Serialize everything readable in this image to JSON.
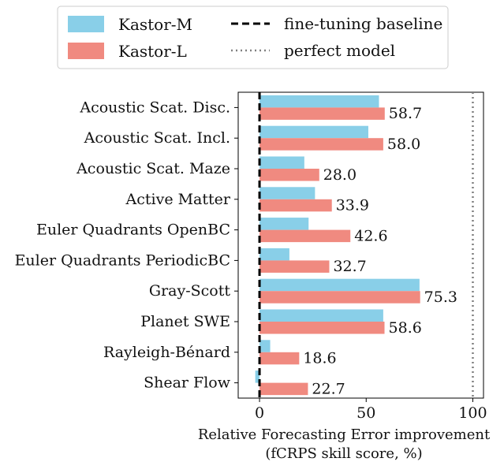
{
  "chart_data": {
    "type": "bar",
    "orientation": "horizontal",
    "xlabel": "Relative Forecasting Error improvement",
    "xlabel_line2": "(fCRPS skill score, %)",
    "xlim": [
      -10,
      105
    ],
    "xticks": [
      0,
      50,
      100
    ],
    "grid": false,
    "legend_position": "top",
    "categories": [
      "Acoustic Scat. Disc.",
      "Acoustic Scat. Incl.",
      "Acoustic Scat. Maze",
      "Active Matter",
      "Euler Quadrants OpenBC",
      "Euler Quadrants PeriodicBC",
      "Gray-Scott",
      "Planet SWE",
      "Rayleigh-Bénard",
      "Shear Flow"
    ],
    "series": [
      {
        "name": "Kastor-M",
        "color": "#89cfe8",
        "values": [
          56,
          51,
          21,
          26,
          23,
          14,
          75,
          58,
          5,
          -2
        ]
      },
      {
        "name": "Kastor-L",
        "color": "#f08a80",
        "values": [
          58.7,
          58.0,
          28.0,
          33.9,
          42.6,
          32.7,
          75.3,
          58.6,
          18.6,
          22.7
        ],
        "labels": [
          "58.7",
          "58.0",
          "28.0",
          "33.9",
          "42.6",
          "32.7",
          "75.3",
          "58.6",
          "18.6",
          "22.7"
        ]
      }
    ],
    "reference_lines": [
      {
        "name": "fine-tuning baseline",
        "x": 0,
        "style": "dashed",
        "color": "#000000"
      },
      {
        "name": "perfect model",
        "x": 100,
        "style": "dotted",
        "color": "#808080"
      }
    ]
  }
}
